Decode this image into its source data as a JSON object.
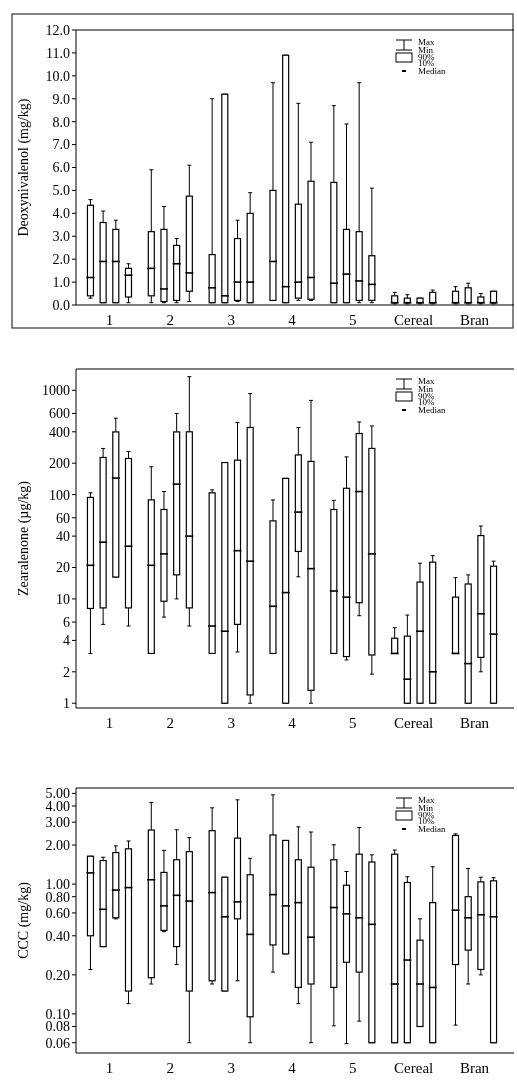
{
  "chart_data": [
    {
      "type": "box",
      "ylabel": "Deoxynivalenol (mg/kg)",
      "categories": [
        "1",
        "2",
        "3",
        "4",
        "5",
        "Cereal",
        "Bran"
      ],
      "ylim": [
        0,
        12
      ],
      "yticks": [
        {
          "value": 0,
          "label": "0.0"
        },
        {
          "value": 1,
          "label": "1.0"
        },
        {
          "value": 2,
          "label": "2.0"
        },
        {
          "value": 3,
          "label": "3.0"
        },
        {
          "value": 4,
          "label": "4.0"
        },
        {
          "value": 5,
          "label": "5.0"
        },
        {
          "value": 6,
          "label": "6.0"
        },
        {
          "value": 7,
          "label": "7.0"
        },
        {
          "value": 8,
          "label": "8.0"
        },
        {
          "value": 9,
          "label": "9.0"
        },
        {
          "value": 10,
          "label": "10.0"
        },
        {
          "value": 11,
          "label": "11.0"
        },
        {
          "value": 12,
          "label": "12.0"
        }
      ],
      "annotations": [
        "Max",
        "Min",
        "90%",
        "10%",
        "Median"
      ],
      "series": [
        {
          "color": "#000000",
          "boxes": [
            {
              "low": 0.3,
              "q1": 0.4,
              "median": 1.2,
              "q3": 4.35,
              "high": 4.6
            },
            {
              "low": 0.1,
              "q1": 0.4,
              "median": 1.6,
              "q3": 3.2,
              "high": 5.9
            },
            {
              "low": 0.1,
              "q1": 0.1,
              "median": 0.75,
              "q3": 2.2,
              "high": 9.0
            },
            {
              "low": 0.2,
              "q1": 0.2,
              "median": 1.9,
              "q3": 5.0,
              "high": 9.7
            },
            {
              "low": 0.1,
              "q1": 0.1,
              "median": 0.95,
              "q3": 5.35,
              "high": 8.7
            },
            {
              "low": 0.05,
              "q1": 0.1,
              "median": 0.1,
              "q3": 0.4,
              "high": 0.55
            },
            {
              "low": 0.05,
              "q1": 0.1,
              "median": 0.1,
              "q3": 0.6,
              "high": 0.8
            }
          ]
        },
        {
          "color": "#000000",
          "boxes": [
            {
              "low": 0.1,
              "q1": 0.1,
              "median": 1.9,
              "q3": 3.6,
              "high": 4.1
            },
            {
              "low": 0.1,
              "q1": 0.15,
              "median": 0.7,
              "q3": 3.3,
              "high": 4.3
            },
            {
              "low": 0.1,
              "q1": 0.1,
              "median": 0.4,
              "q3": 9.2,
              "high": 9.2
            },
            {
              "low": 0.1,
              "q1": 0.1,
              "median": 0.8,
              "q3": 10.9,
              "high": 10.9
            },
            {
              "low": 0.1,
              "q1": 0.1,
              "median": 1.35,
              "q3": 3.3,
              "high": 7.9
            },
            {
              "low": 0.05,
              "q1": 0.1,
              "median": 0.1,
              "q3": 0.3,
              "high": 0.45
            },
            {
              "low": 0.05,
              "q1": 0.1,
              "median": 0.1,
              "q3": 0.75,
              "high": 0.95
            }
          ]
        },
        {
          "color": "#000000",
          "boxes": [
            {
              "low": 0.1,
              "q1": 0.1,
              "median": 1.9,
              "q3": 3.3,
              "high": 3.7
            },
            {
              "low": 0.1,
              "q1": 0.2,
              "median": 1.8,
              "q3": 2.6,
              "high": 2.9
            },
            {
              "low": 0.15,
              "q1": 0.2,
              "median": 1.0,
              "q3": 2.9,
              "high": 3.7
            },
            {
              "low": 0.2,
              "q1": 0.3,
              "median": 1.0,
              "q3": 4.4,
              "high": 8.8
            },
            {
              "low": 0.1,
              "q1": 0.2,
              "median": 1.05,
              "q3": 3.2,
              "high": 9.7
            },
            {
              "low": 0.05,
              "q1": 0.1,
              "median": 0.1,
              "q3": 0.3,
              "high": 0.3
            },
            {
              "low": 0.05,
              "q1": 0.1,
              "median": 0.1,
              "q3": 0.35,
              "high": 0.5
            }
          ]
        },
        {
          "color": "#000000",
          "boxes": [
            {
              "low": 0.1,
              "q1": 0.35,
              "median": 1.3,
              "q3": 1.6,
              "high": 1.8
            },
            {
              "low": 0.15,
              "q1": 0.6,
              "median": 1.4,
              "q3": 4.75,
              "high": 6.1
            },
            {
              "low": 0.1,
              "q1": 0.1,
              "median": 1.0,
              "q3": 4.0,
              "high": 4.9
            },
            {
              "low": 0.2,
              "q1": 0.25,
              "median": 1.2,
              "q3": 5.4,
              "high": 7.1
            },
            {
              "low": 0.1,
              "q1": 0.2,
              "median": 0.9,
              "q3": 2.15,
              "high": 5.1
            },
            {
              "low": 0.05,
              "q1": 0.1,
              "median": 0.1,
              "q3": 0.55,
              "high": 0.65
            },
            {
              "low": 0.05,
              "q1": 0.1,
              "median": 0.1,
              "q3": 0.6,
              "high": 0.6
            }
          ]
        }
      ]
    },
    {
      "type": "box",
      "ylabel": "Zearalenone  (µg/kg)",
      "categories": [
        "1",
        "2",
        "3",
        "4",
        "5",
        "Cereal",
        "Bran"
      ],
      "log": true,
      "ylim": [
        0.9,
        1600
      ],
      "yticks": [
        1,
        2,
        4,
        6,
        10,
        20,
        40,
        60,
        100,
        200,
        400,
        600,
        1000
      ],
      "annotations": [
        "Max",
        "Min",
        "90%",
        "10%",
        "Median"
      ],
      "series": [
        {
          "color": "#000000",
          "boxes": [
            {
              "low": 3,
              "q1": 8.1,
              "median": 21,
              "q3": 94,
              "high": 104
            },
            {
              "low": 3,
              "q1": 3,
              "median": 21,
              "q3": 89,
              "high": 185
            },
            {
              "low": 3,
              "q1": 3,
              "median": 5.5,
              "q3": 104,
              "high": 111
            },
            {
              "low": 3,
              "q1": 3,
              "median": 8.5,
              "q3": 56,
              "high": 89
            },
            {
              "low": 3,
              "q1": 3,
              "median": 11.9,
              "q3": 72,
              "high": 88
            },
            {
              "low": 3,
              "q1": 3,
              "median": 3,
              "q3": 4.2,
              "high": 5.3
            },
            {
              "low": 3,
              "q1": 3,
              "median": 3,
              "q3": 10.4,
              "high": 16
            }
          ]
        },
        {
          "color": "#000000",
          "boxes": [
            {
              "low": 5.7,
              "q1": 8.2,
              "median": 35,
              "q3": 227,
              "high": 277
            },
            {
              "low": 6.7,
              "q1": 9.5,
              "median": 27,
              "q3": 72,
              "high": 107
            },
            {
              "low": 1,
              "q1": 1,
              "median": 4.9,
              "q3": 203,
              "high": 203
            },
            {
              "low": 1,
              "q1": 1,
              "median": 11.5,
              "q3": 143,
              "high": 143
            },
            {
              "low": 2.6,
              "q1": 2.8,
              "median": 10.4,
              "q3": 115,
              "high": 230
            },
            {
              "low": 1,
              "q1": 1,
              "median": 1.7,
              "q3": 4.4,
              "high": 7
            },
            {
              "low": 1,
              "q1": 1,
              "median": 2.4,
              "q3": 13.9,
              "high": 17
            }
          ]
        },
        {
          "color": "#000000",
          "boxes": [
            {
              "low": 16.2,
              "q1": 16.2,
              "median": 144,
              "q3": 399,
              "high": 540
            },
            {
              "low": 10,
              "q1": 17,
              "median": 126,
              "q3": 399,
              "high": 600
            },
            {
              "low": 3.1,
              "q1": 5.7,
              "median": 29,
              "q3": 214,
              "high": 490
            },
            {
              "low": 16.3,
              "q1": 28.5,
              "median": 68,
              "q3": 240,
              "high": 440
            },
            {
              "low": 6.9,
              "q1": 9.2,
              "median": 107,
              "q3": 385,
              "high": 497
            },
            {
              "low": 1,
              "q1": 1,
              "median": 4.9,
              "q3": 14.5,
              "high": 22
            },
            {
              "low": 2,
              "q1": 2.75,
              "median": 7.2,
              "q3": 40.5,
              "high": 50
            }
          ]
        },
        {
          "color": "#000000",
          "boxes": [
            {
              "low": 5.5,
              "q1": 8.2,
              "median": 32,
              "q3": 222,
              "high": 259
            },
            {
              "low": 5.5,
              "q1": 8.2,
              "median": 40,
              "q3": 400,
              "high": 1350
            },
            {
              "low": 1,
              "q1": 1.2,
              "median": 23,
              "q3": 440,
              "high": 930
            },
            {
              "low": 1,
              "q1": 1.33,
              "median": 19.5,
              "q3": 208,
              "high": 800
            },
            {
              "low": 1.9,
              "q1": 2.9,
              "median": 27,
              "q3": 277,
              "high": 455
            },
            {
              "low": 1,
              "q1": 1,
              "median": 2,
              "q3": 22.5,
              "high": 26
            },
            {
              "low": 1,
              "q1": 1,
              "median": 4.6,
              "q3": 20.6,
              "high": 23
            }
          ]
        }
      ]
    },
    {
      "type": "box",
      "ylabel": "CCC (mg/kg)",
      "categories": [
        "1",
        "2",
        "3",
        "4",
        "5",
        "Cereal",
        "Bran"
      ],
      "log": true,
      "ylim": [
        0.05,
        5.5
      ],
      "yticks": [
        {
          "value": 0.06,
          "label": "0.06"
        },
        {
          "value": 0.08,
          "label": "0.08"
        },
        {
          "value": 0.1,
          "label": "0.10"
        },
        {
          "value": 0.2,
          "label": "0.20"
        },
        {
          "value": 0.4,
          "label": "0.40"
        },
        {
          "value": 0.6,
          "label": "0.60"
        },
        {
          "value": 0.8,
          "label": "0.80"
        },
        {
          "value": 1,
          "label": "1.00"
        },
        {
          "value": 2,
          "label": "2.00"
        },
        {
          "value": 3,
          "label": "3.00"
        },
        {
          "value": 4,
          "label": "4.00"
        },
        {
          "value": 5,
          "label": "5.00"
        }
      ],
      "annotations": [
        "Max",
        "Min",
        "90%",
        "10%",
        "Median"
      ],
      "series": [
        {
          "color": "#000000",
          "boxes": [
            {
              "low": 0.22,
              "q1": 0.4,
              "median": 1.22,
              "q3": 1.64,
              "high": 1.64
            },
            {
              "low": 0.17,
              "q1": 0.19,
              "median": 1.08,
              "q3": 2.61,
              "high": 4.26
            },
            {
              "low": 0.17,
              "q1": 0.18,
              "median": 0.86,
              "q3": 2.58,
              "high": 3.87
            },
            {
              "low": 0.21,
              "q1": 0.34,
              "median": 0.83,
              "q3": 2.39,
              "high": 4.87
            },
            {
              "low": 0.081,
              "q1": 0.16,
              "median": 0.66,
              "q3": 1.54,
              "high": 2.01
            },
            {
              "low": 0.06,
              "q1": 0.06,
              "median": 0.17,
              "q3": 1.7,
              "high": 1.83
            },
            {
              "low": 0.082,
              "q1": 0.24,
              "median": 0.63,
              "q3": 2.37,
              "high": 2.44
            }
          ]
        },
        {
          "color": "#000000",
          "boxes": [
            {
              "low": 0.33,
              "q1": 0.33,
              "median": 0.64,
              "q3": 1.52,
              "high": 1.61
            },
            {
              "low": 0.43,
              "q1": 0.44,
              "median": 0.68,
              "q3": 1.23,
              "high": 1.82
            },
            {
              "low": 0.15,
              "q1": 0.15,
              "median": 0.56,
              "q3": 1.13,
              "high": 1.13
            },
            {
              "low": 0.29,
              "q1": 0.29,
              "median": 0.68,
              "q3": 2.17,
              "high": 2.17
            },
            {
              "low": 0.059,
              "q1": 0.25,
              "median": 0.59,
              "q3": 0.98,
              "high": 1.25
            },
            {
              "low": 0.06,
              "q1": 0.06,
              "median": 0.26,
              "q3": 1.03,
              "high": 1.14
            },
            {
              "low": 0.17,
              "q1": 0.31,
              "median": 0.55,
              "q3": 0.8,
              "high": 1.32
            }
          ]
        },
        {
          "color": "#000000",
          "boxes": [
            {
              "low": 0.54,
              "q1": 0.55,
              "median": 0.9,
              "q3": 1.75,
              "high": 1.97
            },
            {
              "low": 0.24,
              "q1": 0.33,
              "median": 0.82,
              "q3": 1.54,
              "high": 2.62
            },
            {
              "low": 0.18,
              "q1": 0.54,
              "median": 0.73,
              "q3": 2.26,
              "high": 4.46
            },
            {
              "low": 0.12,
              "q1": 0.16,
              "median": 0.72,
              "q3": 1.54,
              "high": 2.76
            },
            {
              "low": 0.088,
              "q1": 0.21,
              "median": 0.55,
              "q3": 1.7,
              "high": 2.73
            },
            {
              "low": 0.08,
              "q1": 0.08,
              "median": 0.17,
              "q3": 0.37,
              "high": 0.54
            },
            {
              "low": 0.2,
              "q1": 0.22,
              "median": 0.58,
              "q3": 1.04,
              "high": 1.13
            }
          ]
        },
        {
          "color": "#000000",
          "boxes": [
            {
              "low": 0.12,
              "q1": 0.15,
              "median": 0.94,
              "q3": 1.87,
              "high": 2.15
            },
            {
              "low": 0.06,
              "q1": 0.15,
              "median": 0.74,
              "q3": 1.78,
              "high": 2.28
            },
            {
              "low": 0.06,
              "q1": 0.095,
              "median": 0.41,
              "q3": 1.18,
              "high": 1.58
            },
            {
              "low": 0.06,
              "q1": 0.17,
              "median": 0.39,
              "q3": 1.35,
              "high": 2.52
            },
            {
              "low": 0.06,
              "q1": 0.06,
              "median": 0.49,
              "q3": 1.48,
              "high": 1.68
            },
            {
              "low": 0.06,
              "q1": 0.06,
              "median": 0.16,
              "q3": 0.72,
              "high": 1.36
            },
            {
              "low": 0.06,
              "q1": 0.06,
              "median": 0.56,
              "q3": 1.06,
              "high": 1.12
            }
          ]
        }
      ]
    }
  ]
}
